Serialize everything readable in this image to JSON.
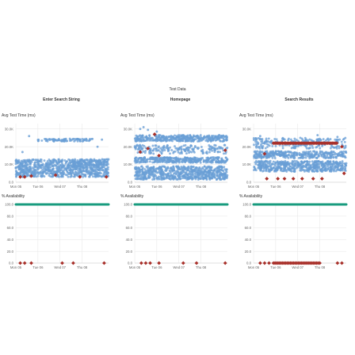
{
  "page_title": "Test Data",
  "colors": {
    "perf_point": "#6a9fd6",
    "failure_marker": "#a8302a",
    "availability_line": "#189b7e",
    "grid": "#e6e6e6",
    "axis_text": "#666666"
  },
  "panels": [
    {
      "title": "Enter Search String",
      "perf_label": "Avg Test Time (ms)",
      "avail_label": "% Availability"
    },
    {
      "title": "Homepage",
      "perf_label": "Avg Test Time (ms)",
      "avail_label": "% Availability"
    },
    {
      "title": "Search Results",
      "perf_label": "Avg Test Time (ms)",
      "avail_label": "% Availability"
    }
  ],
  "chart_data": [
    {
      "panel": "Enter Search String",
      "type": "scatter",
      "ylabel": "Avg Test Time (ms)",
      "x_ticks": [
        "Mon 05",
        "Tue 06",
        "Wed 07",
        "Thu 08"
      ],
      "y_ticks": [
        "0.0",
        "10.0K",
        "20.0K",
        "30.0K"
      ],
      "ylim": [
        0,
        33000
      ],
      "series": [
        {
          "marker": "circle",
          "bands": [
            {
              "x_start": 0.0,
              "x_end": 4.2,
              "y_low": 3000,
              "y_high": 13000,
              "density": "dense"
            },
            {
              "x_start": 1.0,
              "x_end": 3.5,
              "y_low": 23000,
              "y_high": 24500,
              "density": "medium"
            }
          ],
          "scattered": [
            [
              0.3,
              17000
            ],
            [
              0.6,
              26000
            ],
            [
              3.7,
              20000
            ],
            [
              3.9,
              24000
            ]
          ]
        },
        {
          "marker": "diamond",
          "points": [
            [
              0.2,
              3000
            ],
            [
              0.4,
              3000
            ],
            [
              0.7,
              3500
            ],
            [
              1.8,
              4000
            ],
            [
              2.9,
              3000
            ],
            [
              4.1,
              3000
            ]
          ]
        }
      ]
    },
    {
      "panel": "Enter Search String",
      "type": "scatter",
      "ylabel": "% Availability",
      "x_ticks": [
        "Mon 05",
        "Tue 06",
        "Wed 07",
        "Thu 08"
      ],
      "y_ticks": [
        "0.0",
        "20.0",
        "40.0",
        "60.0",
        "80.0",
        "100.0"
      ],
      "ylim": [
        0,
        100
      ],
      "series": [
        {
          "marker": "line",
          "points": [
            [
              0.0,
              100
            ],
            [
              4.2,
              100
            ]
          ]
        },
        {
          "marker": "diamond",
          "points": [
            [
              0.2,
              0
            ],
            [
              0.4,
              0
            ],
            [
              0.7,
              0
            ],
            [
              2.1,
              0
            ],
            [
              2.6,
              0
            ],
            [
              4.0,
              0
            ]
          ]
        }
      ]
    },
    {
      "panel": "Homepage",
      "type": "scatter",
      "ylabel": "Avg Test Time (ms)",
      "x_ticks": [
        "Mon 05",
        "Tue 06",
        "Wed 07",
        "Thu 08"
      ],
      "y_ticks": [
        "0.0",
        "10.0K",
        "20.0K",
        "30.0K"
      ],
      "ylim": [
        0,
        33000
      ],
      "series": [
        {
          "marker": "circle",
          "bands": [
            {
              "x_start": 0.0,
              "x_end": 4.2,
              "y_low": 1500,
              "y_high": 9000,
              "density": "dense"
            },
            {
              "x_start": 0.0,
              "x_end": 4.2,
              "y_low": 11000,
              "y_high": 14000,
              "density": "dense"
            },
            {
              "x_start": 0.0,
              "x_end": 4.2,
              "y_low": 16000,
              "y_high": 21000,
              "density": "medium"
            },
            {
              "x_start": 0.0,
              "x_end": 4.2,
              "y_low": 23000,
              "y_high": 26500,
              "density": "dense"
            }
          ],
          "scattered": [
            [
              0.4,
              31000
            ],
            [
              0.6,
              29500
            ],
            [
              0.25,
              30000
            ],
            [
              1.0,
              28500
            ]
          ]
        },
        {
          "marker": "diamond",
          "points": [
            [
              0.25,
              17000
            ],
            [
              0.6,
              19000
            ],
            [
              0.9,
              27000
            ],
            [
              1.1,
              15000
            ],
            [
              4.1,
              18000
            ]
          ]
        }
      ]
    },
    {
      "panel": "Homepage",
      "type": "scatter",
      "ylabel": "% Availability",
      "x_ticks": [
        "Mon 05",
        "Tue 06",
        "Wed 07",
        "Thu 08"
      ],
      "y_ticks": [
        "0.0",
        "20.0",
        "40.0",
        "60.0",
        "80.0",
        "100.0"
      ],
      "ylim": [
        0,
        100
      ],
      "series": [
        {
          "marker": "line",
          "points": [
            [
              0.0,
              100
            ],
            [
              4.2,
              100
            ]
          ]
        },
        {
          "marker": "diamond",
          "points": [
            [
              0.3,
              0
            ],
            [
              0.5,
              0
            ],
            [
              0.7,
              0
            ],
            [
              1.1,
              0
            ],
            [
              2.2,
              0
            ],
            [
              2.8,
              0
            ],
            [
              4.1,
              0
            ]
          ]
        }
      ]
    },
    {
      "panel": "Search Results",
      "type": "scatter",
      "ylabel": "Avg Test Time (ms)",
      "x_ticks": [
        "Mon 05",
        "Tue 06",
        "Wed 07",
        "Thu 08"
      ],
      "y_ticks": [
        "0.0",
        "10.0K",
        "20.0K",
        "30.0K"
      ],
      "ylim": [
        0,
        33000
      ],
      "series": [
        {
          "marker": "circle",
          "bands": [
            {
              "x_start": 0.0,
              "x_end": 4.2,
              "y_low": 6000,
              "y_high": 12000,
              "density": "dense"
            },
            {
              "x_start": 0.0,
              "x_end": 4.2,
              "y_low": 13500,
              "y_high": 17500,
              "density": "dense"
            },
            {
              "x_start": 0.0,
              "x_end": 4.2,
              "y_low": 19000,
              "y_high": 25000,
              "density": "medium"
            }
          ],
          "scattered": [
            [
              0.3,
              26000
            ],
            [
              2.9,
              26500
            ],
            [
              3.8,
              25500
            ]
          ]
        },
        {
          "marker": "diamond",
          "points": [
            [
              0.6,
              2000
            ],
            [
              1.1,
              2000
            ],
            [
              1.4,
              2000
            ],
            [
              1.8,
              2000
            ],
            [
              2.2,
              2000
            ],
            [
              2.7,
              2000
            ],
            [
              3.1,
              2000
            ],
            [
              0.5,
              16000
            ],
            [
              4.0,
              20000
            ],
            [
              4.1,
              5000
            ]
          ],
          "band": {
            "x_start": 0.9,
            "x_end": 3.8,
            "y": 22000
          }
        }
      ]
    },
    {
      "panel": "Search Results",
      "type": "scatter",
      "ylabel": "% Availability",
      "x_ticks": [
        "Mon 05",
        "Tue 06",
        "Wed 07",
        "Thu 08"
      ],
      "y_ticks": [
        "0.0",
        "20.0",
        "40.0",
        "60.0",
        "80.0",
        "100.0"
      ],
      "ylim": [
        0,
        100
      ],
      "series": [
        {
          "marker": "line",
          "points": [
            [
              0.0,
              100
            ],
            [
              4.2,
              100
            ]
          ]
        },
        {
          "marker": "diamond",
          "points": [
            [
              0.3,
              0
            ],
            [
              0.5,
              0
            ],
            [
              0.7,
              0
            ],
            [
              3.8,
              0
            ],
            [
              4.0,
              0
            ]
          ],
          "band": {
            "x_start": 0.9,
            "x_end": 3.0,
            "y": 0
          }
        }
      ]
    }
  ]
}
